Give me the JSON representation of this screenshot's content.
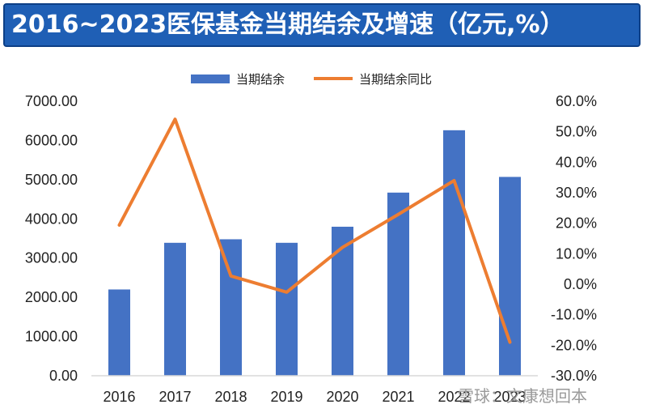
{
  "title": "2016~2023医保基金当期结余及增速（亿元,%）",
  "colors": {
    "title_bg": "#1f5fb5",
    "bar": "#4472c4",
    "line": "#ed7d31",
    "text": "#222222"
  },
  "watermark": "雪球：文康想回本",
  "chart_data": {
    "type": "bar+line",
    "title": "2016~2023医保基金当期结余及增速（亿元,%）",
    "categories": [
      "2016",
      "2017",
      "2018",
      "2019",
      "2020",
      "2021",
      "2022",
      "2023"
    ],
    "series": [
      {
        "name": "当期结余",
        "type": "bar",
        "axis": "left",
        "values": [
          2200,
          3390,
          3480,
          3390,
          3800,
          4670,
          6260,
          5070
        ]
      },
      {
        "name": "当期结余同比",
        "type": "line",
        "axis": "right",
        "unit": "%",
        "values": [
          19.4,
          54.1,
          2.7,
          -2.6,
          12.1,
          22.9,
          34.0,
          -19.0
        ]
      }
    ],
    "ylim_left": [
      0,
      7000
    ],
    "ylim_right": [
      -30,
      60
    ],
    "yticks_left": [
      "0.00",
      "1000.00",
      "2000.00",
      "3000.00",
      "4000.00",
      "5000.00",
      "6000.00",
      "7000.00"
    ],
    "yticks_right": [
      "-30.0%",
      "-20.0%",
      "-10.0%",
      "0.0%",
      "10.0%",
      "20.0%",
      "30.0%",
      "40.0%",
      "50.0%",
      "60.0%"
    ],
    "legend_position": "top-center",
    "grid": false
  }
}
